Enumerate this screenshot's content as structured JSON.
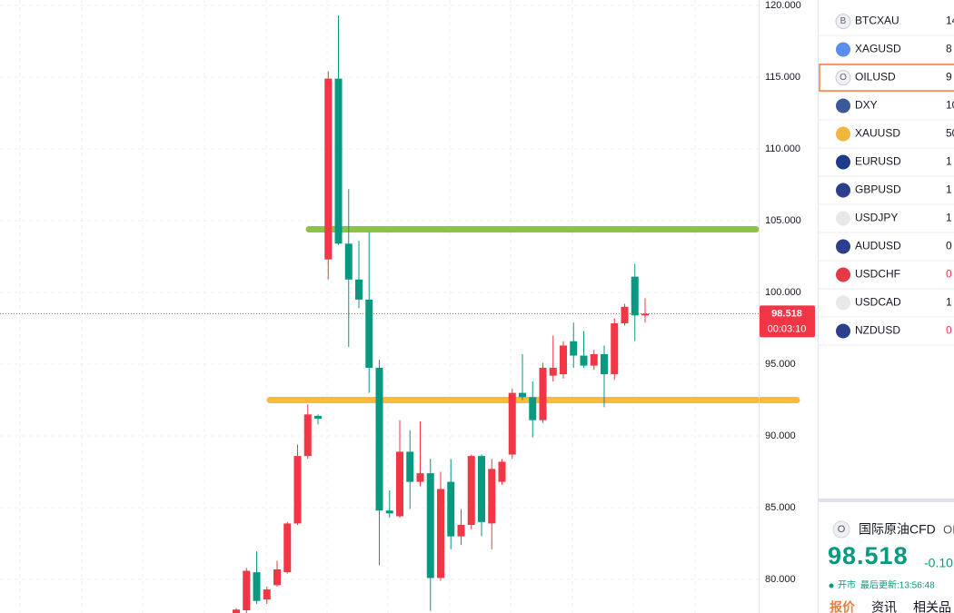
{
  "chart_data": {
    "type": "candlestick",
    "categories": [
      null,
      null,
      null,
      null,
      null,
      null,
      null,
      null,
      null,
      null,
      null,
      null,
      null,
      null,
      null,
      null,
      null,
      null,
      null,
      null,
      null,
      null,
      null,
      null,
      null,
      null,
      null,
      null,
      null,
      null,
      null,
      null,
      null,
      null,
      null,
      null,
      null,
      null,
      null,
      null,
      null
    ],
    "open": [
      77.6,
      77.85,
      80.5,
      78.6,
      79.6,
      80.5,
      83.9,
      88.6,
      91.4,
      102.3,
      114.9,
      103.4,
      100.9,
      99.5,
      94.75,
      84.8,
      84.4,
      88.9,
      86.8,
      87.4,
      80.1,
      86.8,
      83.0,
      83.8,
      88.6,
      83.9,
      86.8,
      88.7,
      93.0,
      92.7,
      91.1,
      94.2,
      94.3,
      96.6,
      95.6,
      94.9,
      95.7,
      94.3,
      97.85,
      101.1,
      98.4
    ],
    "high": [
      78.0,
      80.8,
      81.95,
      79.5,
      81.3,
      84.0,
      89.4,
      92.2,
      91.5,
      115.4,
      119.3,
      107.2,
      103.6,
      104.2,
      95.3,
      86.2,
      91.1,
      90.4,
      91.0,
      88.4,
      87.5,
      88.4,
      84.9,
      88.7,
      88.7,
      88.4,
      88.4,
      93.3,
      95.7,
      93.8,
      95.1,
      97.0,
      96.6,
      97.9,
      97.3,
      96.0,
      96.3,
      98.2,
      99.2,
      102.0,
      99.6
    ],
    "low": [
      77.6,
      77.6,
      78.3,
      78.3,
      79.5,
      80.4,
      83.8,
      88.4,
      90.8,
      100.9,
      103.3,
      96.2,
      98.9,
      93.0,
      81.0,
      84.3,
      84.3,
      84.9,
      86.5,
      77.8,
      79.9,
      82.1,
      82.4,
      83.5,
      83.0,
      82.1,
      86.6,
      88.4,
      92.5,
      89.9,
      90.9,
      93.8,
      94.0,
      94.75,
      94.75,
      94.6,
      92.0,
      93.9,
      97.7,
      96.6,
      97.9
    ],
    "close": [
      77.9,
      80.6,
      78.5,
      79.3,
      80.7,
      83.9,
      88.6,
      91.5,
      91.2,
      114.9,
      103.4,
      100.9,
      99.5,
      94.75,
      84.8,
      84.6,
      88.9,
      86.8,
      87.4,
      80.1,
      86.3,
      83.0,
      83.8,
      88.6,
      84.0,
      87.7,
      88.2,
      93.0,
      92.7,
      91.1,
      94.75,
      94.75,
      96.3,
      95.6,
      94.9,
      95.7,
      94.3,
      97.85,
      99.0,
      98.4,
      98.518
    ],
    "up_color": "#f23645",
    "down_color": "#089981",
    "ylim": [
      77.66,
      120.38
    ],
    "yticks": [
      {
        "value": 80,
        "label": "80.000"
      },
      {
        "value": 85,
        "label": "85.000"
      },
      {
        "value": 90,
        "label": "90.000"
      },
      {
        "value": 95,
        "label": "95.000"
      },
      {
        "value": 100,
        "label": "100.000"
      },
      {
        "value": 105,
        "label": "105.000"
      },
      {
        "value": 110,
        "label": "110.000"
      },
      {
        "value": 115,
        "label": "115.000"
      },
      {
        "value": 120,
        "label": "120.000"
      }
    ],
    "grid": true,
    "last_price": 98.518,
    "countdown": "00:03:10",
    "drawings": [
      {
        "value": 104.4,
        "color": "#8bc34a"
      },
      {
        "value": 92.5,
        "color": "#ffb938"
      }
    ]
  },
  "watchlist": {
    "rows": [
      {
        "icon": "B",
        "symbol": "BTCXAU",
        "price": "14",
        "color": "#131722"
      },
      {
        "symbol": "XAGUSD",
        "price": "8",
        "color": "#131722"
      },
      {
        "icon": "O",
        "symbol": "OILUSD",
        "price": "9",
        "color": "#131722"
      },
      {
        "symbol": "DXY",
        "price": "10",
        "color": "#131722"
      },
      {
        "symbol": "XAUUSD",
        "price": "50",
        "color": "#131722"
      },
      {
        "symbol": "EURUSD",
        "price": "1",
        "color": "#131722"
      },
      {
        "symbol": "GBPUSD",
        "price": "1",
        "color": "#131722"
      },
      {
        "symbol": "USDJPY",
        "price": "1",
        "color": "#131722"
      },
      {
        "symbol": "AUDUSD",
        "price": "0",
        "color": "#131722"
      },
      {
        "symbol": "USDCHF",
        "price": "0",
        "color": "#f23645"
      },
      {
        "symbol": "USDCAD",
        "price": "1",
        "color": "#131722"
      },
      {
        "symbol": "NZDUSD",
        "price": "0",
        "color": "#f23645"
      }
    ]
  },
  "detail": {
    "icon": "O",
    "name": "国际原油CFD",
    "code": "OI",
    "price": "98.518",
    "change": "-0.10",
    "status": "开市",
    "updated": "最后更新:13:56:48",
    "tabs": [
      "报价",
      "资讯",
      "相关品"
    ]
  }
}
